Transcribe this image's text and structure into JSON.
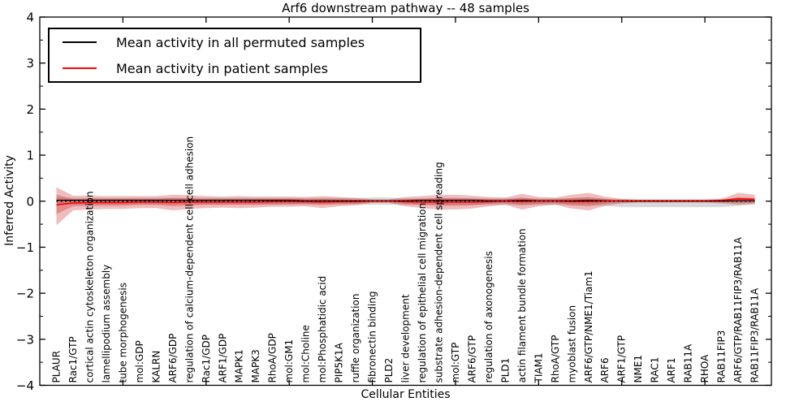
{
  "figure": {
    "title": "Arf6 downstream pathway -- 48 samples",
    "xlabel": "Cellular Entities",
    "ylabel": "Inferred Activity"
  },
  "legend": {
    "items": [
      {
        "label": "Mean activity in all permuted samples",
        "color": "#000000"
      },
      {
        "label": "Mean activity in patient samples",
        "color": "#ff0000"
      }
    ]
  },
  "chart_data": {
    "type": "line",
    "title": "Arf6 downstream pathway -- 48 samples",
    "xlabel": "Cellular Entities",
    "ylabel": "Inferred Activity",
    "ylim": [
      -4,
      4
    ],
    "xlim": [
      0,
      44
    ],
    "yticks": [
      -4,
      -3,
      -2,
      -1,
      0,
      1,
      2,
      3,
      4
    ],
    "ytick_labels": [
      "−4",
      "−3",
      "−2",
      "−1",
      "0",
      "1",
      "2",
      "3",
      "4"
    ],
    "ytick_minor_step": 0.5,
    "xtick_positions": [
      5,
      10,
      15,
      20,
      25,
      30,
      35,
      40
    ],
    "grid": false,
    "legend_position": "upper left",
    "zero_line": {
      "style": "dotted",
      "color": "#000000",
      "y": 0
    },
    "categories": [
      "PLAUR",
      "Rac1/GTP",
      "cortical actin cytoskeleton organization",
      "lamellipodium assembly",
      "tube morphogenesis",
      "mol:GDP",
      "KALRN",
      "ARF6/GDP",
      "regulation of calcium-dependent cell-cell adhesion",
      "Rac1/GDP",
      "ARF1/GDP",
      "MAPK1",
      "MAPK3",
      "RhoA/GDP",
      "mol:GM1",
      "mol:Choline",
      "mol:Phosphatidic acid",
      "PIP5K1A",
      "ruffle organization",
      "fibronectin binding",
      "PLD2",
      "liver development",
      "regulation of epithelial cell migration",
      "substrate adhesion-dependent cell spreading",
      "mol:GTP",
      "ARF6/GTP",
      "regulation of axonogenesis",
      "PLD1",
      "actin filament bundle formation",
      "TIAM1",
      "RhoA/GTP",
      "myoblast fusion",
      "ARF6/GTP/NME1/Tiam1",
      "ARF6",
      "ARF1/GTP",
      "NME1",
      "RAC1",
      "ARF1",
      "RAB11A",
      "RHOA",
      "RAB11FIP3",
      "ARF6/GTP/RAB11FIP3/RAB11A",
      "RAB11FIP3/RAB11A"
    ],
    "series": [
      {
        "name": "Mean activity in all permuted samples",
        "color": "#000000",
        "values": [
          0.02,
          0.02,
          0.02,
          0.02,
          0.02,
          0.02,
          0.02,
          0.02,
          0.02,
          0.02,
          0.02,
          0.02,
          0.02,
          0.02,
          0.02,
          0.01,
          0.01,
          0.01,
          0.01,
          0.01,
          0.01,
          0.01,
          0.02,
          0.02,
          0.02,
          0.02,
          0.01,
          0.01,
          0.02,
          0.01,
          0.01,
          0.01,
          0.02,
          0.01,
          0,
          0,
          0,
          0,
          0,
          0,
          0,
          0.01,
          0.01
        ]
      },
      {
        "name": "Mean activity in patient samples",
        "color": "#ff0000",
        "values": [
          -0.08,
          -0.04,
          -0.03,
          -0.03,
          -0.03,
          -0.02,
          -0.02,
          -0.03,
          -0.02,
          -0.02,
          -0.02,
          -0.02,
          -0.02,
          -0.01,
          -0.01,
          -0.01,
          -0.02,
          -0.01,
          -0.01,
          0,
          0,
          -0.01,
          -0.02,
          -0.02,
          -0.02,
          -0.02,
          -0.01,
          0,
          -0.01,
          0,
          0,
          -0.01,
          -0.01,
          0,
          0.01,
          0.01,
          0.01,
          0.01,
          0.01,
          0.01,
          0.02,
          0.05,
          0.04
        ]
      }
    ],
    "bands": [
      {
        "name": "permuted-std-band",
        "color": "rgba(130,130,130,0.30)",
        "top": [
          0.07,
          0.07,
          0.07,
          0.07,
          0.07,
          0.07,
          0.07,
          0.07,
          0.07,
          0.07,
          0.07,
          0.07,
          0.07,
          0.07,
          0.07,
          0.07,
          0.07,
          0.07,
          0.07,
          0.08,
          0.08,
          0.06,
          0.06,
          0.06,
          0.06,
          0.06,
          0.06,
          0.06,
          0.06,
          0.06,
          0.06,
          0.06,
          0.06,
          0.05,
          0.04,
          0.04,
          0.04,
          0.04,
          0.04,
          0.04,
          0.04,
          0.04,
          0.04
        ],
        "bottom": [
          -0.07,
          -0.07,
          -0.07,
          -0.07,
          -0.07,
          -0.07,
          -0.07,
          -0.07,
          -0.07,
          -0.07,
          -0.07,
          -0.07,
          -0.07,
          -0.07,
          -0.07,
          -0.07,
          -0.07,
          -0.07,
          -0.07,
          -0.08,
          -0.08,
          -0.08,
          -0.08,
          -0.08,
          -0.08,
          -0.08,
          -0.08,
          -0.08,
          -0.08,
          -0.08,
          -0.08,
          -0.08,
          -0.08,
          -0.1,
          -0.13,
          -0.13,
          -0.13,
          -0.13,
          -0.13,
          -0.13,
          -0.13,
          -0.1,
          -0.07
        ]
      },
      {
        "name": "patient-outer-band",
        "color": "rgba(203,38,38,0.30)",
        "top": [
          0.3,
          0.12,
          0.12,
          0.11,
          0.11,
          0.11,
          0.11,
          0.14,
          0.13,
          0.11,
          0.1,
          0.11,
          0.1,
          0.1,
          0.1,
          0.09,
          0.11,
          0.09,
          0.07,
          0.04,
          0.04,
          0.09,
          0.11,
          0.14,
          0.14,
          0.12,
          0.09,
          0.08,
          0.16,
          0.09,
          0.08,
          0.14,
          0.18,
          0.1,
          0.05,
          0.03,
          0.03,
          0.03,
          0.03,
          0.03,
          0.05,
          0.18,
          0.14
        ],
        "bottom": [
          -0.52,
          -0.2,
          -0.18,
          -0.17,
          -0.17,
          -0.15,
          -0.15,
          -0.2,
          -0.17,
          -0.15,
          -0.14,
          -0.15,
          -0.14,
          -0.12,
          -0.12,
          -0.11,
          -0.15,
          -0.11,
          -0.09,
          -0.04,
          -0.04,
          -0.11,
          -0.15,
          -0.18,
          -0.18,
          -0.16,
          -0.11,
          -0.08,
          -0.18,
          -0.11,
          -0.08,
          -0.16,
          -0.2,
          -0.1,
          -0.05,
          -0.03,
          -0.03,
          -0.03,
          -0.03,
          -0.03,
          -0.05,
          -0.08,
          -0.06
        ]
      },
      {
        "name": "patient-inner-band",
        "color": "rgba(203,38,38,0.32)",
        "top": [
          0.14,
          0.05,
          0.05,
          0.05,
          0.05,
          0.05,
          0.05,
          0.07,
          0.06,
          0.05,
          0.05,
          0.05,
          0.05,
          0.05,
          0.05,
          0.04,
          0.05,
          0.04,
          0.03,
          0.02,
          0.02,
          0.04,
          0.05,
          0.07,
          0.07,
          0.06,
          0.04,
          0.04,
          0.08,
          0.04,
          0.04,
          0.07,
          0.09,
          0.05,
          0.02,
          0.015,
          0.015,
          0.015,
          0.015,
          0.015,
          0.02,
          0.09,
          0.07
        ],
        "bottom": [
          -0.28,
          -0.11,
          -0.1,
          -0.1,
          -0.1,
          -0.08,
          -0.08,
          -0.11,
          -0.09,
          -0.08,
          -0.08,
          -0.08,
          -0.08,
          -0.07,
          -0.07,
          -0.06,
          -0.08,
          -0.06,
          -0.05,
          -0.02,
          -0.02,
          -0.06,
          -0.08,
          -0.1,
          -0.1,
          -0.09,
          -0.06,
          -0.04,
          -0.09,
          -0.06,
          -0.04,
          -0.09,
          -0.11,
          -0.05,
          -0.02,
          -0.015,
          -0.015,
          -0.015,
          -0.015,
          -0.015,
          -0.02,
          -0.04,
          -0.03
        ]
      }
    ]
  }
}
